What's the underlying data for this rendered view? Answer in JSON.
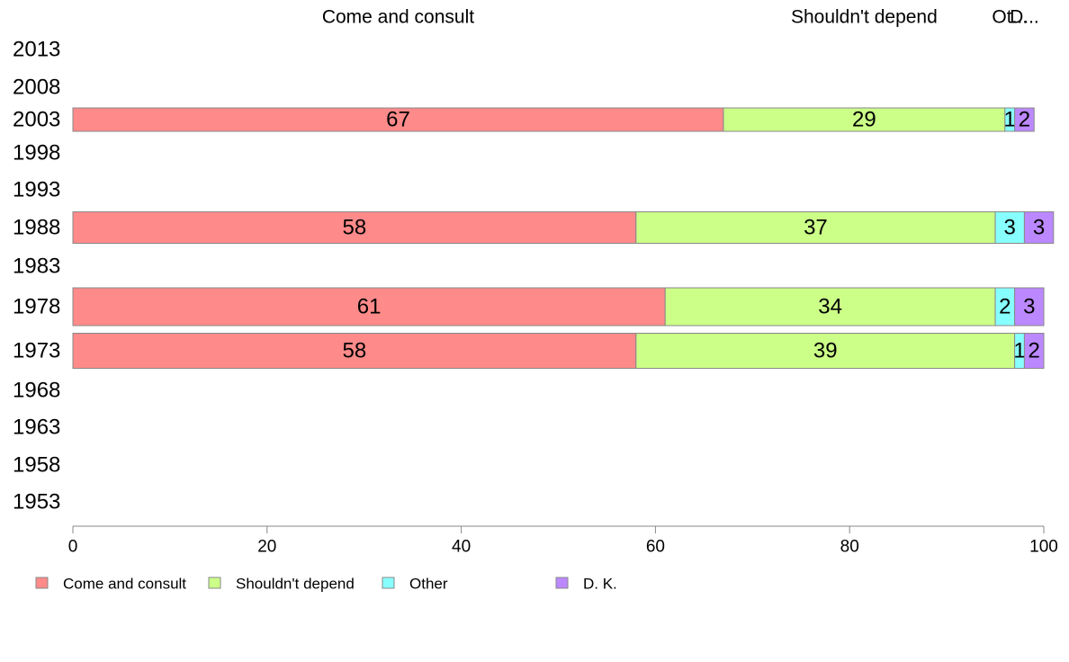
{
  "chart_data": {
    "type": "bar",
    "orientation": "horizontal",
    "stacked": true,
    "title": "",
    "xlabel": "",
    "ylabel": "",
    "xlim": [
      0,
      100
    ],
    "x_ticks": [
      0,
      20,
      40,
      60,
      80,
      100
    ],
    "grid": false,
    "categories": [
      "2013",
      "2008",
      "2003",
      "1998",
      "1993",
      "1988",
      "1983",
      "1978",
      "1973",
      "1968",
      "1963",
      "1958",
      "1953"
    ],
    "series": [
      {
        "name": "Come and consult",
        "color": "#ff8a8a",
        "values": [
          null,
          null,
          67,
          null,
          null,
          58,
          null,
          61,
          58,
          null,
          null,
          null,
          null
        ]
      },
      {
        "name": "Shouldn't depend",
        "color": "#ccff88",
        "values": [
          null,
          null,
          29,
          null,
          null,
          37,
          null,
          34,
          39,
          null,
          null,
          null,
          null
        ]
      },
      {
        "name": "Other",
        "color": "#88ffff",
        "values": [
          null,
          null,
          1,
          null,
          null,
          3,
          null,
          2,
          1,
          null,
          null,
          null,
          null
        ]
      },
      {
        "name": "D. K.",
        "color": "#bb88ff",
        "values": [
          null,
          null,
          2,
          null,
          null,
          3,
          null,
          3,
          2,
          null,
          null,
          null,
          null
        ]
      }
    ],
    "top_labels": [
      "Come and consult",
      "Shouldn't depend",
      "Ot...",
      "D..."
    ],
    "legend": {
      "position": "bottom-left",
      "entries": [
        "Come and consult",
        "Shouldn't depend",
        "Other",
        "D. K."
      ]
    }
  }
}
